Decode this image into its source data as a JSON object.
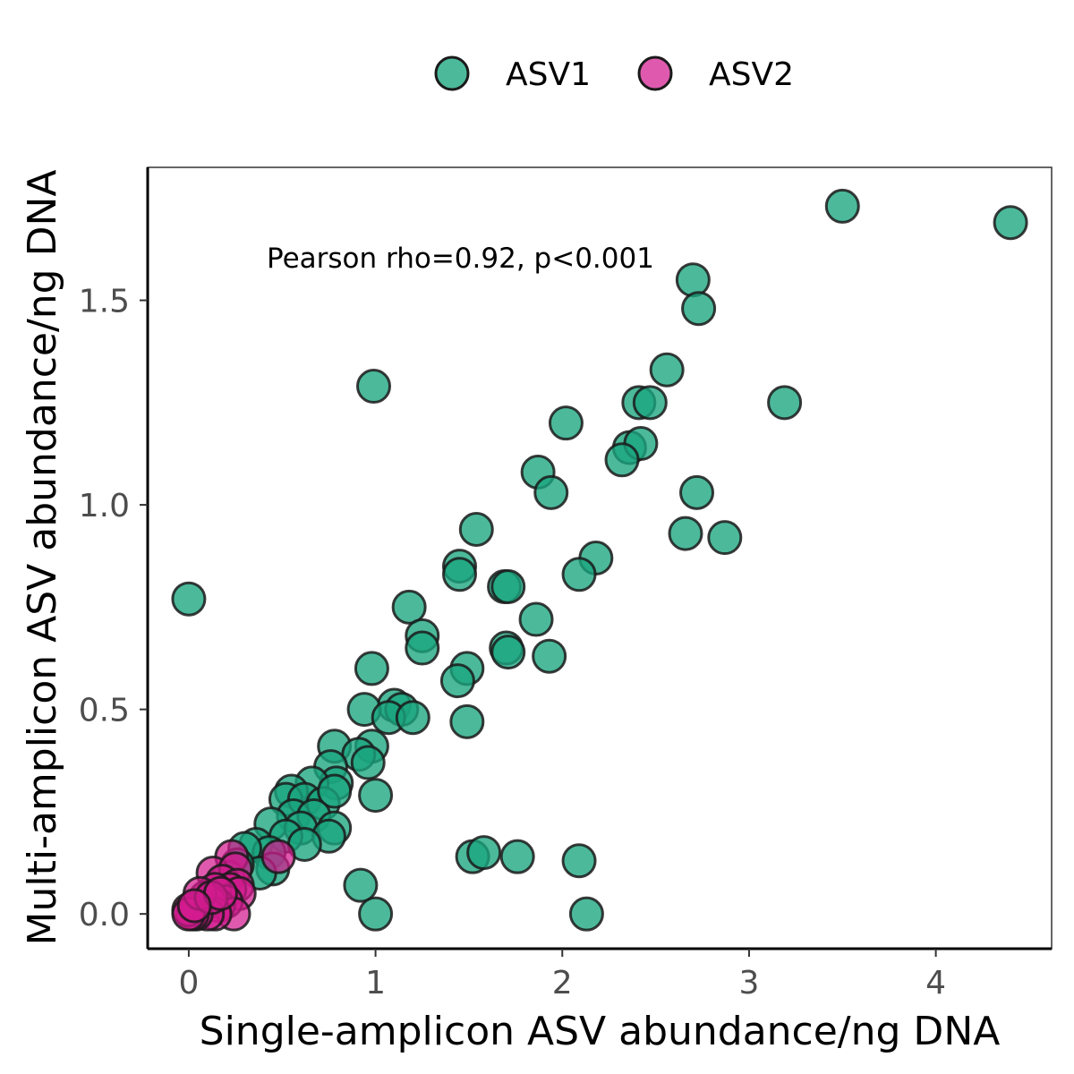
{
  "chart_data": {
    "type": "scatter",
    "xlabel": "Single-amplicon ASV abundance/ng DNA",
    "ylabel": "Multi-amplicon ASV abundance/ng DNA",
    "xlim": [
      -0.22,
      4.62
    ],
    "ylim": [
      -0.085,
      1.825
    ],
    "x_ticks": [
      0,
      1,
      2,
      3,
      4
    ],
    "x_tick_labels": [
      "0",
      "1",
      "2",
      "3",
      "4"
    ],
    "y_ticks": [
      0.0,
      0.5,
      1.0,
      1.5
    ],
    "y_tick_labels": [
      "0.0",
      "0.5",
      "1.0",
      "1.5"
    ],
    "grid": false,
    "legend_position": "top",
    "annotation": "Pearson rho=0.92, p<0.001",
    "series": [
      {
        "name": "ASV1",
        "color": "#1aa57f",
        "points": [
          [
            4.4,
            1.69
          ],
          [
            3.5,
            1.73
          ],
          [
            2.7,
            1.55
          ],
          [
            2.73,
            1.48
          ],
          [
            2.56,
            1.33
          ],
          [
            0.99,
            1.29
          ],
          [
            3.19,
            1.25
          ],
          [
            2.41,
            1.25
          ],
          [
            2.47,
            1.25
          ],
          [
            2.02,
            1.2
          ],
          [
            2.36,
            1.14
          ],
          [
            2.42,
            1.15
          ],
          [
            2.32,
            1.11
          ],
          [
            1.87,
            1.08
          ],
          [
            1.94,
            1.03
          ],
          [
            2.72,
            1.03
          ],
          [
            2.66,
            0.93
          ],
          [
            2.87,
            0.92
          ],
          [
            1.54,
            0.94
          ],
          [
            2.18,
            0.87
          ],
          [
            2.09,
            0.83
          ],
          [
            1.45,
            0.85
          ],
          [
            1.45,
            0.83
          ],
          [
            1.69,
            0.8
          ],
          [
            1.71,
            0.8
          ],
          [
            0.0,
            0.77
          ],
          [
            1.18,
            0.75
          ],
          [
            1.86,
            0.72
          ],
          [
            1.25,
            0.68
          ],
          [
            1.25,
            0.65
          ],
          [
            1.7,
            0.65
          ],
          [
            1.71,
            0.64
          ],
          [
            1.93,
            0.63
          ],
          [
            0.98,
            0.6
          ],
          [
            1.49,
            0.6
          ],
          [
            1.44,
            0.57
          ],
          [
            1.49,
            0.47
          ],
          [
            1.1,
            0.51
          ],
          [
            1.14,
            0.5
          ],
          [
            0.94,
            0.5
          ],
          [
            1.07,
            0.48
          ],
          [
            1.2,
            0.48
          ],
          [
            0.78,
            0.41
          ],
          [
            0.98,
            0.41
          ],
          [
            0.91,
            0.39
          ],
          [
            0.96,
            0.37
          ],
          [
            0.76,
            0.36
          ],
          [
            0.79,
            0.32
          ],
          [
            0.66,
            0.32
          ],
          [
            0.55,
            0.3
          ],
          [
            0.52,
            0.28
          ],
          [
            0.62,
            0.28
          ],
          [
            0.72,
            0.27
          ],
          [
            0.78,
            0.3
          ],
          [
            1.0,
            0.29
          ],
          [
            0.56,
            0.24
          ],
          [
            0.67,
            0.24
          ],
          [
            0.44,
            0.22
          ],
          [
            0.6,
            0.21
          ],
          [
            0.78,
            0.21
          ],
          [
            0.52,
            0.19
          ],
          [
            0.75,
            0.19
          ],
          [
            0.36,
            0.17
          ],
          [
            0.62,
            0.17
          ],
          [
            0.43,
            0.15
          ],
          [
            0.3,
            0.16
          ],
          [
            0.45,
            0.11
          ],
          [
            0.38,
            0.1
          ],
          [
            0.26,
            0.12
          ],
          [
            0.21,
            0.09
          ],
          [
            1.52,
            0.14
          ],
          [
            1.58,
            0.15
          ],
          [
            1.76,
            0.14
          ],
          [
            2.09,
            0.13
          ],
          [
            0.92,
            0.07
          ],
          [
            1.0,
            0.0
          ],
          [
            2.13,
            0.0
          ]
        ]
      },
      {
        "name": "ASV2",
        "color": "#d31b8f",
        "points": [
          [
            0.48,
            0.14
          ],
          [
            0.23,
            0.14
          ],
          [
            0.13,
            0.1
          ],
          [
            0.25,
            0.11
          ],
          [
            0.18,
            0.08
          ],
          [
            0.26,
            0.07
          ],
          [
            0.22,
            0.06
          ],
          [
            0.27,
            0.05
          ],
          [
            0.14,
            0.06
          ],
          [
            0.09,
            0.04
          ],
          [
            0.2,
            0.03
          ],
          [
            0.16,
            0.02
          ],
          [
            0.24,
            0.0
          ],
          [
            0.11,
            0.03
          ],
          [
            0.07,
            0.02
          ],
          [
            0.05,
            0.01
          ],
          [
            0.14,
            0.0
          ],
          [
            0.1,
            0.0
          ],
          [
            0.04,
            0.0
          ],
          [
            0.02,
            0.0
          ],
          [
            0.0,
            0.01
          ],
          [
            0.0,
            0.0
          ],
          [
            0.06,
            0.05
          ],
          [
            0.12,
            0.04
          ],
          [
            0.17,
            0.05
          ],
          [
            0.03,
            0.02
          ]
        ]
      }
    ]
  }
}
